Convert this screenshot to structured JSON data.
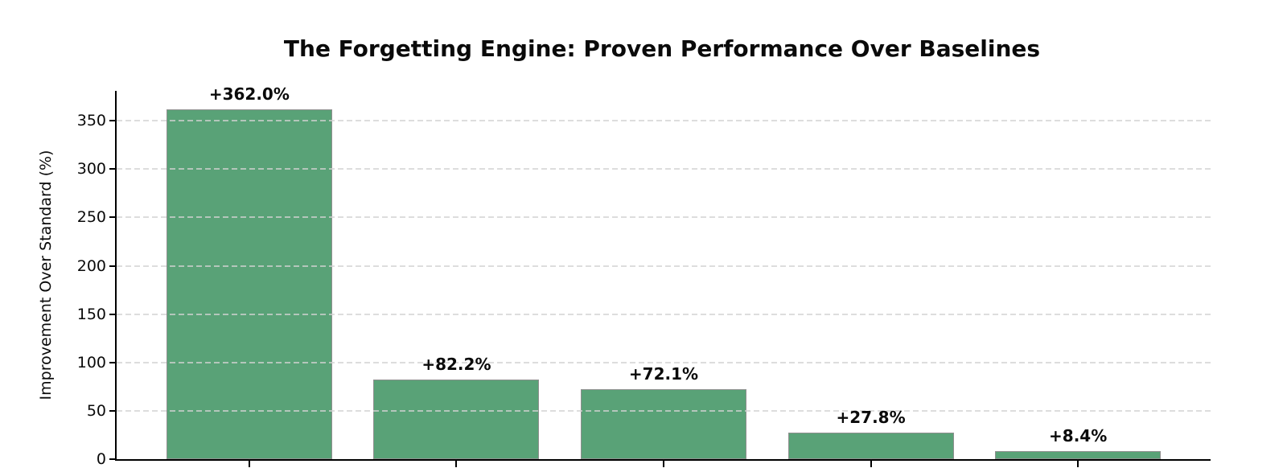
{
  "chart_data": {
    "type": "bar",
    "title": "The Forgetting Engine: Proven Performance Over Baselines",
    "ylabel": "Improvement Over Standard (%)",
    "xlabel": "",
    "categories": [
      "",
      "",
      "",
      "",
      ""
    ],
    "values": [
      362.0,
      82.2,
      72.1,
      27.8,
      8.4
    ],
    "bar_labels": [
      "+362.0%",
      "+82.2%",
      "+72.1%",
      "+27.8%",
      "+8.4%"
    ],
    "yticks": [
      0,
      50,
      100,
      150,
      200,
      250,
      300,
      350
    ],
    "ylim": [
      0,
      381
    ],
    "bar_width_fraction": 0.8,
    "grid": true,
    "grid_axis": "y",
    "grid_style": "dashed",
    "legend": "none",
    "colors": {
      "bar_fill": "#59a277",
      "bar_edge": "#8f8f8f",
      "grid": "#d2d2d2",
      "axis": "#000000",
      "text": "#0a0a0a",
      "background": "#ffffff"
    }
  }
}
